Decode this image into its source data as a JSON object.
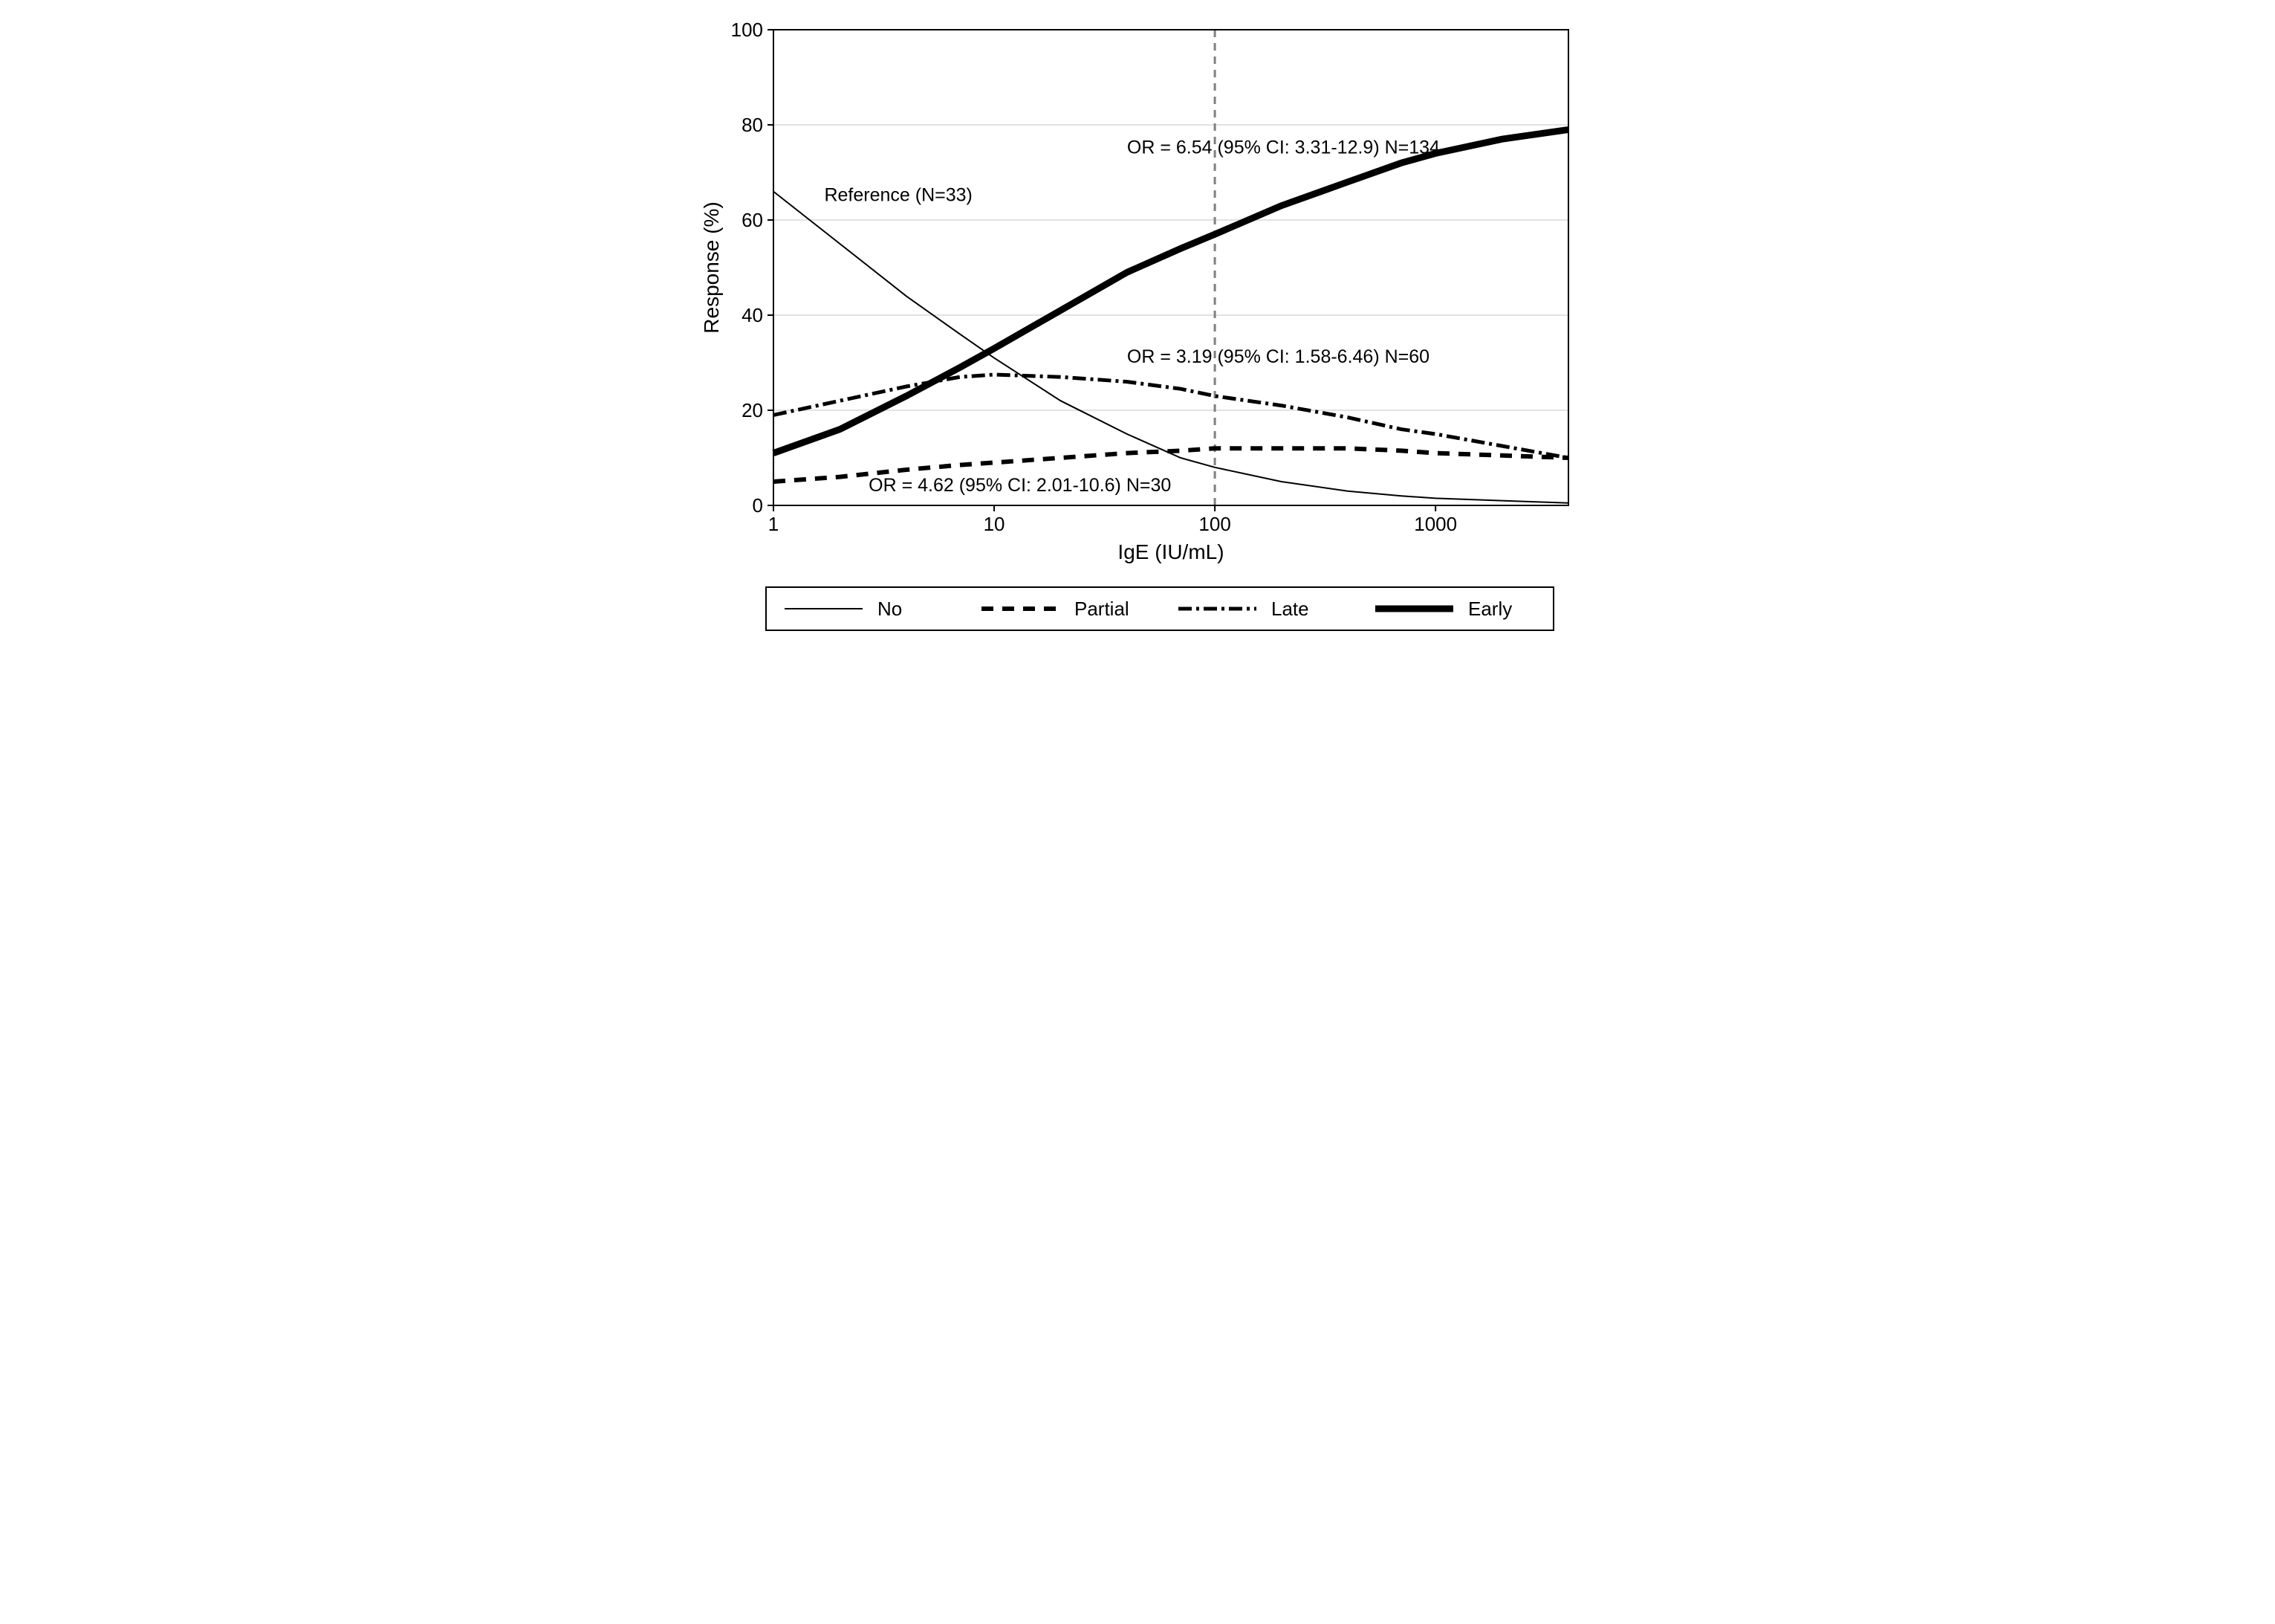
{
  "chart": {
    "type": "line",
    "background_color": "#ffffff",
    "plot_border_color": "#000000",
    "grid_color": "#d9d9d9",
    "xlabel": "IgE (IU/mL)",
    "ylabel": "Response (%)",
    "label_fontsize": 28,
    "tick_fontsize": 26,
    "annotation_fontsize": 25,
    "xscale": "log",
    "xlim": [
      1,
      4000
    ],
    "ylim": [
      0,
      100
    ],
    "xticks": [
      1,
      10,
      100,
      1000
    ],
    "xtick_labels": [
      "1",
      "10",
      "100",
      "1000"
    ],
    "yticks": [
      0,
      20,
      40,
      60,
      80,
      100
    ],
    "ytick_labels": [
      "0",
      "20",
      "40",
      "60",
      "80",
      "100"
    ],
    "vline": {
      "x": 100,
      "color": "#808080",
      "dash": "10,8",
      "width": 3
    },
    "series": {
      "no": {
        "label": "No",
        "color": "#000000",
        "width": 2,
        "dash": "none",
        "x": [
          1,
          2,
          4,
          7,
          10,
          20,
          40,
          70,
          100,
          200,
          400,
          700,
          1000,
          2000,
          4000
        ],
        "y": [
          66,
          55,
          44,
          36,
          31,
          22,
          15,
          10,
          8,
          5,
          3,
          2,
          1.5,
          1,
          0.5
        ]
      },
      "partial": {
        "label": "Partial",
        "color": "#000000",
        "width": 6,
        "dash": "16,12",
        "x": [
          1,
          2,
          4,
          7,
          10,
          20,
          40,
          70,
          100,
          200,
          400,
          700,
          1000,
          2000,
          4000
        ],
        "y": [
          5,
          6,
          7.5,
          8.5,
          9,
          10,
          11,
          11.5,
          12,
          12,
          12,
          11.5,
          11,
          10.5,
          10
        ]
      },
      "late": {
        "label": "Late",
        "color": "#000000",
        "width": 5,
        "dash": "18,6,4,6",
        "x": [
          1,
          2,
          4,
          7,
          10,
          20,
          40,
          70,
          100,
          200,
          400,
          700,
          1000,
          2000,
          4000
        ],
        "y": [
          19,
          22,
          25,
          27,
          27.5,
          27,
          26,
          24.5,
          23,
          21,
          18.5,
          16,
          15,
          12.5,
          10
        ]
      },
      "early": {
        "label": "Early",
        "color": "#000000",
        "width": 9,
        "dash": "none",
        "x": [
          1,
          2,
          4,
          7,
          10,
          20,
          40,
          70,
          100,
          200,
          400,
          700,
          1000,
          2000,
          4000
        ],
        "y": [
          11,
          16,
          23,
          29,
          33,
          41,
          49,
          54,
          57,
          63,
          68,
          72,
          74,
          77,
          79
        ]
      }
    },
    "annotations": {
      "reference": {
        "text": "Reference (N=33)",
        "x_log": 1.7,
        "y": 64
      },
      "early_or": {
        "text": "OR = 6.54 (95% CI: 3.31-12.9) N=134",
        "x_log": 40,
        "y": 74
      },
      "late_or": {
        "text": "OR = 3.19 (95% CI: 1.58-6.46) N=60",
        "x_log": 40,
        "y": 30
      },
      "partial_or": {
        "text": "OR = 4.62 (95% CI: 2.01-10.6) N=30",
        "x_log": 2.7,
        "y": 3
      }
    },
    "legend": {
      "border_color": "#000000",
      "items": [
        "no",
        "partial",
        "late",
        "early"
      ]
    }
  }
}
